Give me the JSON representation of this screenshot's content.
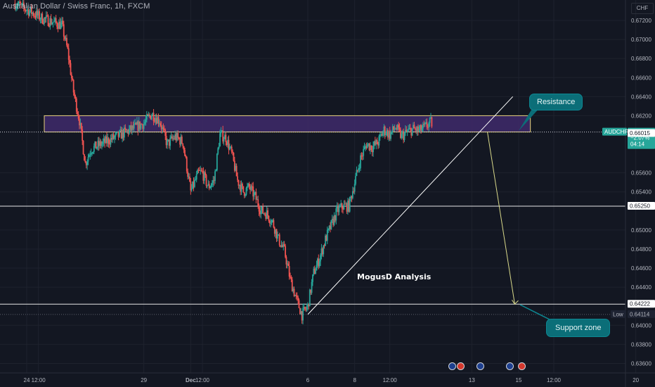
{
  "header": {
    "title": "Australian Dollar / Swiss Franc, 1h, FXCM"
  },
  "currency_badge": "CHF",
  "annotations": {
    "resistance": "Resistance",
    "support": "Support zone",
    "analysis": "MogusD Analysis"
  },
  "colors": {
    "background": "#131722",
    "up_candle": "#26a69a",
    "down_candle": "#ef5350",
    "resistance_box_fill": "#3f2a6b",
    "resistance_box_border": "#e8d27c",
    "callout": "#0b6e78",
    "projection_arrow": "#d9d98a"
  },
  "price_badges": {
    "symbol": "AUDCHF",
    "price": "0.66029",
    "change": "−2.07%",
    "countdown": "04:14",
    "line_1": "0.66015",
    "line_2": "0.65250",
    "line_3": "0.64222",
    "low_label": "Low",
    "low_value": "0.64114"
  },
  "event_icons": [
    {
      "icon": "au-flag-icon",
      "x": "2021-12-14 20:00"
    },
    {
      "icon": "ch-flag-icon",
      "x": "2021-12-15 00:00"
    },
    {
      "icon": "au-flag-icon",
      "x": "2021-12-15 12:00"
    },
    {
      "icon": "au-flag-icon",
      "x": "2021-12-16 14:00"
    },
    {
      "icon": "ch-flag-icon",
      "x": "2021-12-16 18:00"
    }
  ],
  "chart_data": {
    "type": "candlestick",
    "title": "Australian Dollar / Swiss Franc, 1h, FXCM",
    "symbol": "AUDCHF",
    "ylim": [
      0.635,
      0.6737
    ],
    "xlim": [
      "2021-11-24 00:00",
      "2021-12-21 00:00"
    ],
    "yticks": [
      "0.67200",
      "0.67000",
      "0.66800",
      "0.66600",
      "0.66400",
      "0.66200",
      "0.65600",
      "0.65400",
      "0.65000",
      "0.64800",
      "0.64600",
      "0.64400",
      "0.64000",
      "0.63800",
      "0.63600"
    ],
    "xticks": [
      {
        "label": "24",
        "x": "2021-11-24 00:00"
      },
      {
        "label": "12:00",
        "x": "2021-11-24 12:00"
      },
      {
        "label": "29",
        "x": "2021-11-29 00:00"
      },
      {
        "label": "Dec",
        "x": "2021-12-01 00:00"
      },
      {
        "label": "12:00",
        "x": "2021-12-01 12:00"
      },
      {
        "label": "6",
        "x": "2021-12-06 00:00"
      },
      {
        "label": "8",
        "x": "2021-12-08 00:00"
      },
      {
        "label": "12:00",
        "x": "2021-12-09 12:00"
      },
      {
        "label": "13",
        "x": "2021-12-13 00:00"
      },
      {
        "label": "15",
        "x": "2021-12-15 00:00"
      },
      {
        "label": "12:00",
        "x": "2021-12-16 12:00"
      },
      {
        "label": "20",
        "x": "2021-12-20 00:00"
      }
    ],
    "price_path": [
      [
        "2021-11-23 12:00",
        0.6738
      ],
      [
        "2021-11-24 06:00",
        0.6728
      ],
      [
        "2021-11-24 16:00",
        0.6722
      ],
      [
        "2021-11-25 04:00",
        0.6718
      ],
      [
        "2021-11-25 12:00",
        0.6715
      ],
      [
        "2021-11-25 18:00",
        0.6688
      ],
      [
        "2021-11-26 00:00",
        0.6645
      ],
      [
        "2021-11-26 06:00",
        0.6615
      ],
      [
        "2021-11-26 12:00",
        0.657
      ],
      [
        "2021-11-26 18:00",
        0.6585
      ],
      [
        "2021-11-29 00:00",
        0.6612
      ],
      [
        "2021-11-29 08:00",
        0.6622
      ],
      [
        "2021-11-29 16:00",
        0.6615
      ],
      [
        "2021-11-30 00:00",
        0.659
      ],
      [
        "2021-11-30 08:00",
        0.6598
      ],
      [
        "2021-11-30 16:00",
        0.6592
      ],
      [
        "2021-12-01 00:00",
        0.654
      ],
      [
        "2021-12-01 08:00",
        0.656
      ],
      [
        "2021-12-01 12:00",
        0.656
      ],
      [
        "2021-12-01 18:00",
        0.6545
      ],
      [
        "2021-12-02 00:00",
        0.6552
      ],
      [
        "2021-12-02 06:00",
        0.66
      ],
      [
        "2021-12-02 12:00",
        0.6597
      ],
      [
        "2021-12-02 18:00",
        0.658
      ],
      [
        "2021-12-03 00:00",
        0.6552
      ],
      [
        "2021-12-03 06:00",
        0.654
      ],
      [
        "2021-12-03 12:00",
        0.6545
      ],
      [
        "2021-12-03 18:00",
        0.6535
      ],
      [
        "2021-12-04 00:00",
        0.652
      ],
      [
        "2021-12-04 06:00",
        0.6517
      ],
      [
        "2021-12-04 12:00",
        0.6508
      ],
      [
        "2021-12-04 18:00",
        0.649
      ],
      [
        "2021-12-05 00:00",
        0.6478
      ],
      [
        "2021-12-05 06:00",
        0.6448
      ],
      [
        "2021-12-05 12:00",
        0.6428
      ],
      [
        "2021-12-05 18:00",
        0.6411
      ],
      [
        "2021-12-06 00:00",
        0.642
      ],
      [
        "2021-12-06 06:00",
        0.6455
      ],
      [
        "2021-12-06 12:00",
        0.647
      ],
      [
        "2021-12-06 18:00",
        0.649
      ],
      [
        "2021-12-07 00:00",
        0.6505
      ],
      [
        "2021-12-07 06:00",
        0.652
      ],
      [
        "2021-12-07 12:00",
        0.6525
      ],
      [
        "2021-12-07 18:00",
        0.6525
      ],
      [
        "2021-12-08 00:00",
        0.655
      ],
      [
        "2021-12-08 06:00",
        0.6575
      ],
      [
        "2021-12-08 12:00",
        0.659
      ],
      [
        "2021-12-08 18:00",
        0.6587
      ],
      [
        "2021-12-09 00:00",
        0.6592
      ],
      [
        "2021-12-09 06:00",
        0.6605
      ],
      [
        "2021-12-09 12:00",
        0.66
      ],
      [
        "2021-12-09 18:00",
        0.6608
      ],
      [
        "2021-12-10 00:00",
        0.6598
      ],
      [
        "2021-12-10 06:00",
        0.6603
      ],
      [
        "2021-12-10 12:00",
        0.6606
      ],
      [
        "2021-12-10 18:00",
        0.6604
      ],
      [
        "2021-12-11 00:00",
        0.6608
      ],
      [
        "2021-12-11 06:00",
        0.6613
      ],
      [
        "2021-12-11 12:00",
        0.6607
      ],
      [
        "2021-12-11 18:00",
        0.661
      ],
      [
        "2021-12-12 00:00",
        0.6602
      ],
      [
        "2021-12-12 06:00",
        0.6607
      ],
      [
        "2021-12-12 12:00",
        0.6605
      ],
      [
        "2021-12-12 18:00",
        0.6608
      ],
      [
        "2021-12-13 00:00",
        0.6598
      ],
      [
        "2021-12-13 06:00",
        0.6612
      ],
      [
        "2021-12-13 12:00",
        0.6603
      ]
    ],
    "horizontal_lines": [
      0.66029,
      0.6525,
      0.64222,
      0.64114
    ],
    "resistance_zone": {
      "from": 0.66029,
      "to": 0.662,
      "x_start": "2021-11-24 18:00",
      "x_end": "2021-12-15 12:00"
    },
    "trendline": {
      "from": [
        "2021-12-06 00:00",
        0.64114
      ],
      "to": [
        "2021-12-14 18:00",
        0.664
      ]
    },
    "projection_arrow": {
      "from": [
        "2021-12-13 16:00",
        0.66029
      ],
      "to": [
        "2021-12-14 20:00",
        0.64222
      ]
    }
  }
}
